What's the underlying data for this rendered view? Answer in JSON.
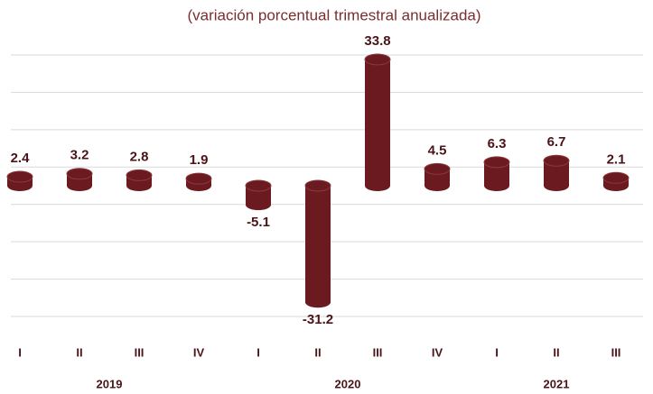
{
  "chart_data": {
    "type": "cylinder-bar",
    "title": "(variación porcentual trimestral anualizada)",
    "groups": [
      {
        "label": "2019",
        "categories": [
          "I",
          "II",
          "III",
          "IV"
        ]
      },
      {
        "label": "2020",
        "categories": [
          "I",
          "II",
          "III",
          "IV"
        ]
      },
      {
        "label": "2021",
        "categories": [
          "I",
          "II",
          "III"
        ]
      }
    ],
    "values": [
      2.4,
      3.2,
      2.8,
      1.9,
      -5.1,
      -31.2,
      33.8,
      4.5,
      6.3,
      6.7,
      2.1
    ],
    "color": "#6b1a1f",
    "ylim": [
      -35,
      35
    ],
    "yticks": [
      -35,
      -25,
      -15,
      -5,
      5,
      15,
      25,
      35
    ],
    "grid": true
  }
}
